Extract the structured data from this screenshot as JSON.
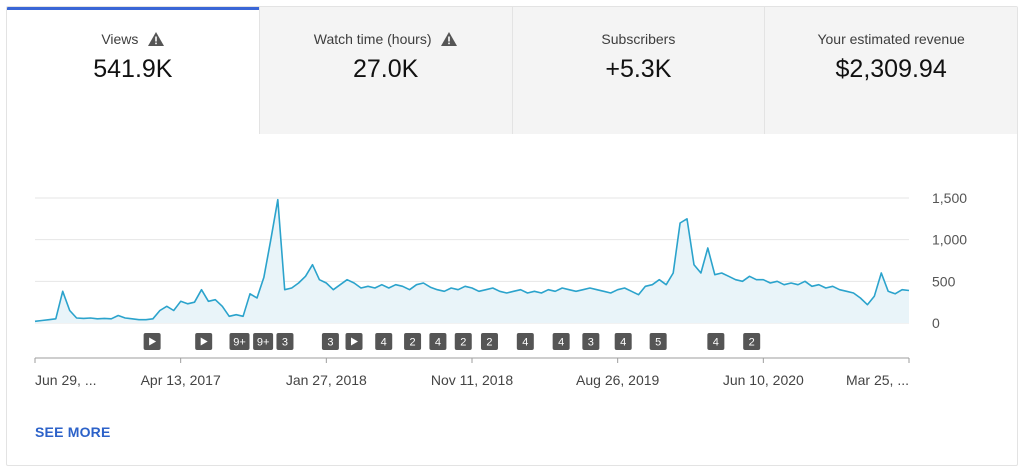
{
  "tabs": [
    {
      "label": "Views",
      "value": "541.9K",
      "warning": true,
      "active": true
    },
    {
      "label": "Watch time (hours)",
      "value": "27.0K",
      "warning": true,
      "active": false
    },
    {
      "label": "Subscribers",
      "value": "+5.3K",
      "warning": false,
      "active": false
    },
    {
      "label": "Your estimated revenue",
      "value": "$2,309.94",
      "warning": false,
      "active": false
    }
  ],
  "see_more": "SEE MORE",
  "chart_data": {
    "type": "area",
    "y_ticks": [
      "1,500",
      "1,000",
      "500",
      "0"
    ],
    "ylim": [
      0,
      1500
    ],
    "x_tick_labels": [
      "Jun 29, ...",
      "Apr 13, 2017",
      "Jan 27, 2018",
      "Nov 11, 2018",
      "Aug 26, 2019",
      "Jun 10, 2020",
      "Mar 25, ..."
    ],
    "series": [
      {
        "values": [
          20,
          30,
          40,
          50,
          380,
          150,
          60,
          55,
          60,
          50,
          55,
          50,
          90,
          60,
          50,
          40,
          40,
          50,
          150,
          200,
          150,
          260,
          230,
          250,
          400,
          260,
          280,
          200,
          80,
          100,
          80,
          350,
          300,
          550,
          1000,
          1480,
          400,
          420,
          480,
          560,
          700,
          520,
          480,
          400,
          460,
          520,
          480,
          420,
          440,
          420,
          460,
          420,
          460,
          440,
          400,
          460,
          480,
          430,
          400,
          380,
          420,
          400,
          440,
          420,
          380,
          400,
          420,
          380,
          360,
          380,
          400,
          360,
          380,
          360,
          400,
          380,
          420,
          400,
          380,
          400,
          420,
          400,
          380,
          360,
          400,
          420,
          380,
          340,
          440,
          460,
          520,
          460,
          600,
          1200,
          1250,
          700,
          600,
          900,
          580,
          600,
          560,
          520,
          500,
          560,
          520,
          520,
          480,
          500,
          460,
          480,
          460,
          500,
          440,
          460,
          420,
          440,
          400,
          380,
          360,
          300,
          220,
          320,
          600,
          380,
          350,
          400,
          390
        ]
      }
    ],
    "line_color": "#2ba3cc",
    "fill_color": "#e9f4f9",
    "annotations": [
      "▶",
      "▶",
      "9+",
      "9+",
      "3",
      "3",
      "▶",
      "4",
      "2",
      "4",
      "2",
      "2",
      "4",
      "4",
      "3",
      "4",
      "5",
      "4",
      "2"
    ],
    "annotation_positions": [
      0.134,
      0.193,
      0.234,
      0.261,
      0.286,
      0.338,
      0.365,
      0.399,
      0.432,
      0.461,
      0.49,
      0.52,
      0.561,
      0.602,
      0.636,
      0.673,
      0.713,
      0.779,
      0.82
    ],
    "grid": true
  }
}
